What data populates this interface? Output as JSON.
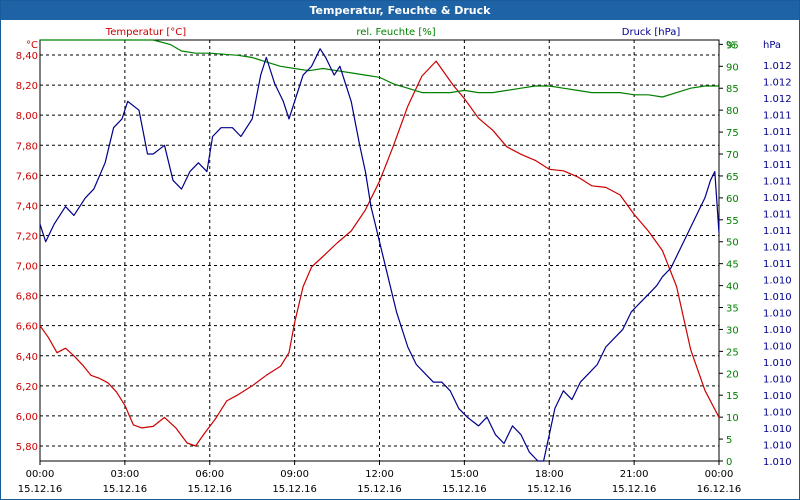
{
  "window": {
    "title": "Temperatur, Feuchte & Druck"
  },
  "colors": {
    "temperature": "#cc0000",
    "humidity": "#008000",
    "pressure": "#00008b",
    "grid": "#000000"
  },
  "chart_data": {
    "type": "line",
    "title": "Temperatur, Feuchte & Druck",
    "legend": [
      "Temperatur [°C]",
      "rel. Feuchte [%]",
      "Druck [hPa]"
    ],
    "grid": true,
    "x_tick_labels": [
      [
        "00:00",
        "15.12.16"
      ],
      [
        "03:00",
        "15.12.16"
      ],
      [
        "06:00",
        "15.12.16"
      ],
      [
        "09:00",
        "15.12.16"
      ],
      [
        "12:00",
        "15.12.16"
      ],
      [
        "15:00",
        "15.12.16"
      ],
      [
        "18:00",
        "15.12.16"
      ],
      [
        "21:00",
        "15.12.16"
      ],
      [
        "00:00",
        "16.12.16"
      ]
    ],
    "x_range_hours": [
      0,
      24
    ],
    "axes": {
      "temperature": {
        "unit": "°C",
        "range": [
          5.7,
          8.5
        ],
        "ticks": [
          "8,40",
          "8,20",
          "8,00",
          "7,80",
          "7,60",
          "7,40",
          "7,20",
          "7,00",
          "6,80",
          "6,60",
          "6,40",
          "6,20",
          "6,00",
          "5,80"
        ]
      },
      "humidity": {
        "unit": "%",
        "range": [
          0,
          96
        ],
        "ticks": [
          "95",
          "90",
          "85",
          "80",
          "75",
          "70",
          "65",
          "60",
          "55",
          "50",
          "45",
          "40",
          "35",
          "30",
          "25",
          "20",
          "15",
          "10",
          "5",
          "0"
        ]
      },
      "pressure": {
        "unit": "hPa",
        "ticks": [
          "1.012",
          "1.012",
          "1.012",
          "1.011",
          "1.011",
          "1.011",
          "1.011",
          "1.011",
          "1.011",
          "1.011",
          "1.011",
          "1.011",
          "1.011",
          "1.010",
          "1.010",
          "1.010",
          "1.010",
          "1.010",
          "1.010",
          "1.010",
          "1.010",
          "1.010",
          "1.010",
          "1.010",
          "1.010"
        ]
      }
    },
    "series": [
      {
        "name": "Temperatur [°C]",
        "axis": "temperature",
        "x": [
          0,
          0.3,
          0.6,
          0.9,
          1.2,
          1.5,
          1.8,
          2.1,
          2.4,
          2.7,
          3,
          3.3,
          3.6,
          4,
          4.4,
          4.8,
          5.2,
          5.5,
          5.8,
          6.2,
          6.6,
          7,
          7.5,
          8,
          8.5,
          8.8,
          9,
          9.3,
          9.6,
          10,
          10.5,
          11,
          11.5,
          12,
          12.5,
          13,
          13.5,
          14,
          14.3,
          14.6,
          15,
          15.5,
          16,
          16.5,
          17,
          17.5,
          18,
          18.5,
          19,
          19.5,
          20,
          20.5,
          21,
          21.5,
          22,
          22.5,
          23,
          23.5,
          24
        ],
        "y": [
          6.6,
          6.52,
          6.42,
          6.45,
          6.4,
          6.34,
          6.27,
          6.25,
          6.22,
          6.16,
          6.07,
          5.94,
          5.92,
          5.93,
          5.99,
          5.92,
          5.82,
          5.8,
          5.88,
          5.98,
          6.1,
          6.14,
          6.2,
          6.27,
          6.33,
          6.42,
          6.62,
          6.86,
          6.99,
          7.06,
          7.15,
          7.23,
          7.37,
          7.56,
          7.8,
          8.06,
          8.26,
          8.36,
          8.28,
          8.2,
          8.11,
          7.98,
          7.9,
          7.79,
          7.74,
          7.7,
          7.64,
          7.63,
          7.59,
          7.53,
          7.52,
          7.47,
          7.34,
          7.23,
          7.1,
          6.86,
          6.44,
          6.17,
          5.99
        ]
      },
      {
        "name": "rel. Feuchte [%]",
        "axis": "humidity",
        "x": [
          0,
          1,
          2,
          3,
          4,
          4.6,
          5,
          5.5,
          6,
          7,
          7.5,
          8,
          8.5,
          9,
          9.5,
          10,
          10.5,
          11,
          11.5,
          12,
          12.5,
          13,
          13.5,
          14,
          14.5,
          15,
          15.5,
          16,
          16.5,
          17,
          17.5,
          18,
          18.5,
          19,
          19.5,
          20,
          20.5,
          21,
          21.5,
          22,
          22.5,
          23,
          23.5,
          24
        ],
        "y": [
          96,
          96,
          96,
          96,
          96,
          95,
          93.5,
          93,
          93,
          92.5,
          92,
          91,
          90,
          89.5,
          89,
          89.5,
          89,
          88.5,
          88,
          87.5,
          86,
          85,
          84,
          84,
          84,
          84.5,
          84,
          84,
          84.5,
          85,
          85.5,
          85.5,
          85,
          84.5,
          84,
          84,
          84,
          83.5,
          83.5,
          83,
          84,
          85,
          85.5,
          85.5
        ]
      },
      {
        "name": "Druck [hPa]",
        "axis": "pressure",
        "x": [
          0,
          0.2,
          0.5,
          0.9,
          1.2,
          1.6,
          1.9,
          2.3,
          2.6,
          2.9,
          3.1,
          3.5,
          3.8,
          4,
          4.4,
          4.7,
          5,
          5.3,
          5.6,
          5.9,
          6.1,
          6.4,
          6.8,
          7.1,
          7.5,
          7.8,
          8,
          8.3,
          8.6,
          8.8,
          9,
          9.3,
          9.6,
          9.9,
          10.1,
          10.4,
          10.6,
          11,
          11.3,
          11.5,
          11.7,
          12,
          12.3,
          12.6,
          13,
          13.3,
          13.6,
          13.9,
          14.2,
          14.5,
          14.8,
          15.1,
          15.5,
          15.8,
          16.1,
          16.4,
          16.7,
          17,
          17.3,
          17.6,
          17.8,
          18,
          18.2,
          18.5,
          18.8,
          19.1,
          19.4,
          19.7,
          20,
          20.3,
          20.6,
          20.9,
          21.2,
          21.5,
          21.8,
          22,
          22.3,
          22.6,
          22.9,
          23.2,
          23.5,
          23.7,
          23.85,
          24
        ],
        "y": [
          1010.9,
          1010.8,
          1010.9,
          1011.0,
          1010.95,
          1011.05,
          1011.1,
          1011.25,
          1011.45,
          1011.5,
          1011.6,
          1011.55,
          1011.3,
          1011.3,
          1011.35,
          1011.15,
          1011.1,
          1011.2,
          1011.25,
          1011.2,
          1011.4,
          1011.45,
          1011.45,
          1011.4,
          1011.5,
          1011.75,
          1011.85,
          1011.7,
          1011.6,
          1011.5,
          1011.6,
          1011.75,
          1011.8,
          1011.9,
          1011.85,
          1011.75,
          1011.8,
          1011.6,
          1011.35,
          1011.2,
          1011.0,
          1010.8,
          1010.6,
          1010.4,
          1010.2,
          1010.1,
          1010.05,
          1010.0,
          1010.0,
          1009.95,
          1009.85,
          1009.8,
          1009.75,
          1009.8,
          1009.7,
          1009.65,
          1009.75,
          1009.7,
          1009.6,
          1009.5,
          1009.55,
          1009.7,
          1009.85,
          1009.95,
          1009.9,
          1010.0,
          1010.05,
          1010.1,
          1010.2,
          1010.25,
          1010.3,
          1010.4,
          1010.45,
          1010.5,
          1010.55,
          1010.6,
          1010.65,
          1010.75,
          1010.85,
          1010.95,
          1011.05,
          1011.15,
          1011.2,
          1010.85
        ]
      }
    ]
  }
}
